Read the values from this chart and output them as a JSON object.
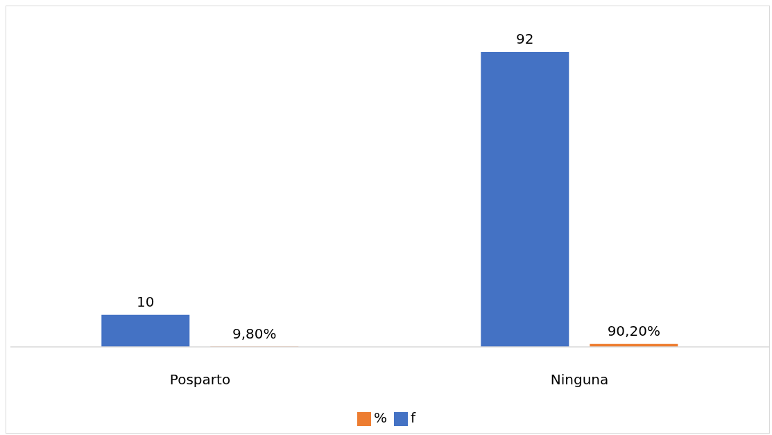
{
  "chart_data": {
    "type": "bar",
    "categories": [
      "Posparto",
      "Ninguna"
    ],
    "series": [
      {
        "name": "f",
        "color": "#4472c4",
        "values": [
          10,
          92
        ],
        "value_labels": [
          "10",
          "92"
        ]
      },
      {
        "name": "%",
        "color": "#ed7d31",
        "values": [
          0.098,
          0.902
        ],
        "value_labels": [
          "9,80%",
          "90,20%"
        ]
      }
    ],
    "legend": "bottom",
    "grid": false
  }
}
